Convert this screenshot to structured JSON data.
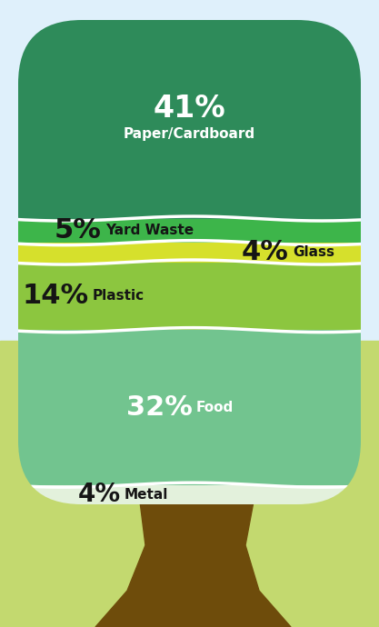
{
  "chart_data": {
    "type": "stack",
    "categories": [
      "Paper/Cardboard",
      "Yard Waste",
      "Glass",
      "Plastic",
      "Food",
      "Metal"
    ],
    "values": [
      41,
      5,
      4,
      14,
      32,
      4
    ],
    "value_labels": [
      "41%",
      "5%",
      "4%",
      "14%",
      "32%",
      "4%"
    ],
    "colors": [
      "#2e8b5a",
      "#3db54a",
      "#d6e02c",
      "#8cc63f",
      "#72c48f",
      "#e3f1dc"
    ],
    "data_labels": true,
    "tick_labels": false
  }
}
